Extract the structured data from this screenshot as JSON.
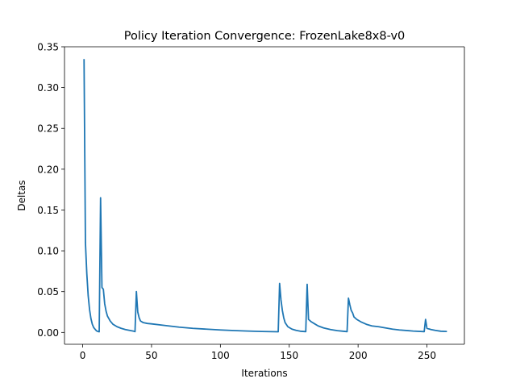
{
  "chart_data": {
    "type": "line",
    "title": "Policy Iteration Convergence: FrozenLake8x8-v0",
    "xlabel": "Iterations",
    "ylabel": "Deltas",
    "xlim": [
      -13.2,
      277.2
    ],
    "ylim": [
      -0.0145,
      0.35
    ],
    "xticks": [
      0,
      50,
      100,
      150,
      200,
      250
    ],
    "xtick_labels": [
      "0",
      "50",
      "100",
      "150",
      "200",
      "250"
    ],
    "yticks": [
      0.0,
      0.05,
      0.1,
      0.15,
      0.2,
      0.25,
      0.3,
      0.35
    ],
    "ytick_labels": [
      "0.00",
      "0.05",
      "0.10",
      "0.15",
      "0.20",
      "0.25",
      "0.30",
      "0.35"
    ],
    "grid": false,
    "legend": "none",
    "series": [
      {
        "color": "#1f77b4",
        "points": [
          [
            1,
            0.334
          ],
          [
            2,
            0.11
          ],
          [
            3,
            0.072
          ],
          [
            4,
            0.045
          ],
          [
            5,
            0.028
          ],
          [
            6,
            0.017
          ],
          [
            7,
            0.01
          ],
          [
            8,
            0.006
          ],
          [
            9,
            0.004
          ],
          [
            10,
            0.002
          ],
          [
            11,
            0.0012
          ],
          [
            12,
            0.0008
          ],
          [
            13,
            0.165
          ],
          [
            14,
            0.055
          ],
          [
            15,
            0.053
          ],
          [
            16,
            0.035
          ],
          [
            17,
            0.026
          ],
          [
            18,
            0.02
          ],
          [
            20,
            0.014
          ],
          [
            22,
            0.01
          ],
          [
            25,
            0.007
          ],
          [
            28,
            0.005
          ],
          [
            31,
            0.0035
          ],
          [
            34,
            0.0025
          ],
          [
            37,
            0.0015
          ],
          [
            38,
            0.001
          ],
          [
            39,
            0.05
          ],
          [
            40,
            0.025
          ],
          [
            41,
            0.018
          ],
          [
            42,
            0.014
          ],
          [
            44,
            0.012
          ],
          [
            47,
            0.011
          ],
          [
            50,
            0.0105
          ],
          [
            60,
            0.0085
          ],
          [
            70,
            0.0065
          ],
          [
            80,
            0.005
          ],
          [
            90,
            0.004
          ],
          [
            100,
            0.003
          ],
          [
            110,
            0.0023
          ],
          [
            120,
            0.0017
          ],
          [
            130,
            0.0012
          ],
          [
            142,
            0.0008
          ],
          [
            143,
            0.06
          ],
          [
            144,
            0.04
          ],
          [
            145,
            0.027
          ],
          [
            146,
            0.018
          ],
          [
            147,
            0.012
          ],
          [
            149,
            0.007
          ],
          [
            152,
            0.004
          ],
          [
            155,
            0.0025
          ],
          [
            158,
            0.0015
          ],
          [
            162,
            0.001
          ],
          [
            163,
            0.059
          ],
          [
            164,
            0.016
          ],
          [
            166,
            0.013
          ],
          [
            168,
            0.011
          ],
          [
            171,
            0.008
          ],
          [
            175,
            0.0055
          ],
          [
            180,
            0.0035
          ],
          [
            185,
            0.0022
          ],
          [
            189,
            0.0015
          ],
          [
            192,
            0.001
          ],
          [
            193,
            0.042
          ],
          [
            194,
            0.034
          ],
          [
            195,
            0.027
          ],
          [
            196,
            0.024
          ],
          [
            197,
            0.019
          ],
          [
            199,
            0.016
          ],
          [
            202,
            0.013
          ],
          [
            206,
            0.01
          ],
          [
            210,
            0.008
          ],
          [
            215,
            0.007
          ],
          [
            220,
            0.0055
          ],
          [
            225,
            0.004
          ],
          [
            230,
            0.003
          ],
          [
            240,
            0.0017
          ],
          [
            248,
            0.001
          ],
          [
            249,
            0.016
          ],
          [
            250,
            0.005
          ],
          [
            253,
            0.0035
          ],
          [
            256,
            0.0025
          ],
          [
            260,
            0.0015
          ],
          [
            264,
            0.0012
          ]
        ]
      }
    ]
  }
}
